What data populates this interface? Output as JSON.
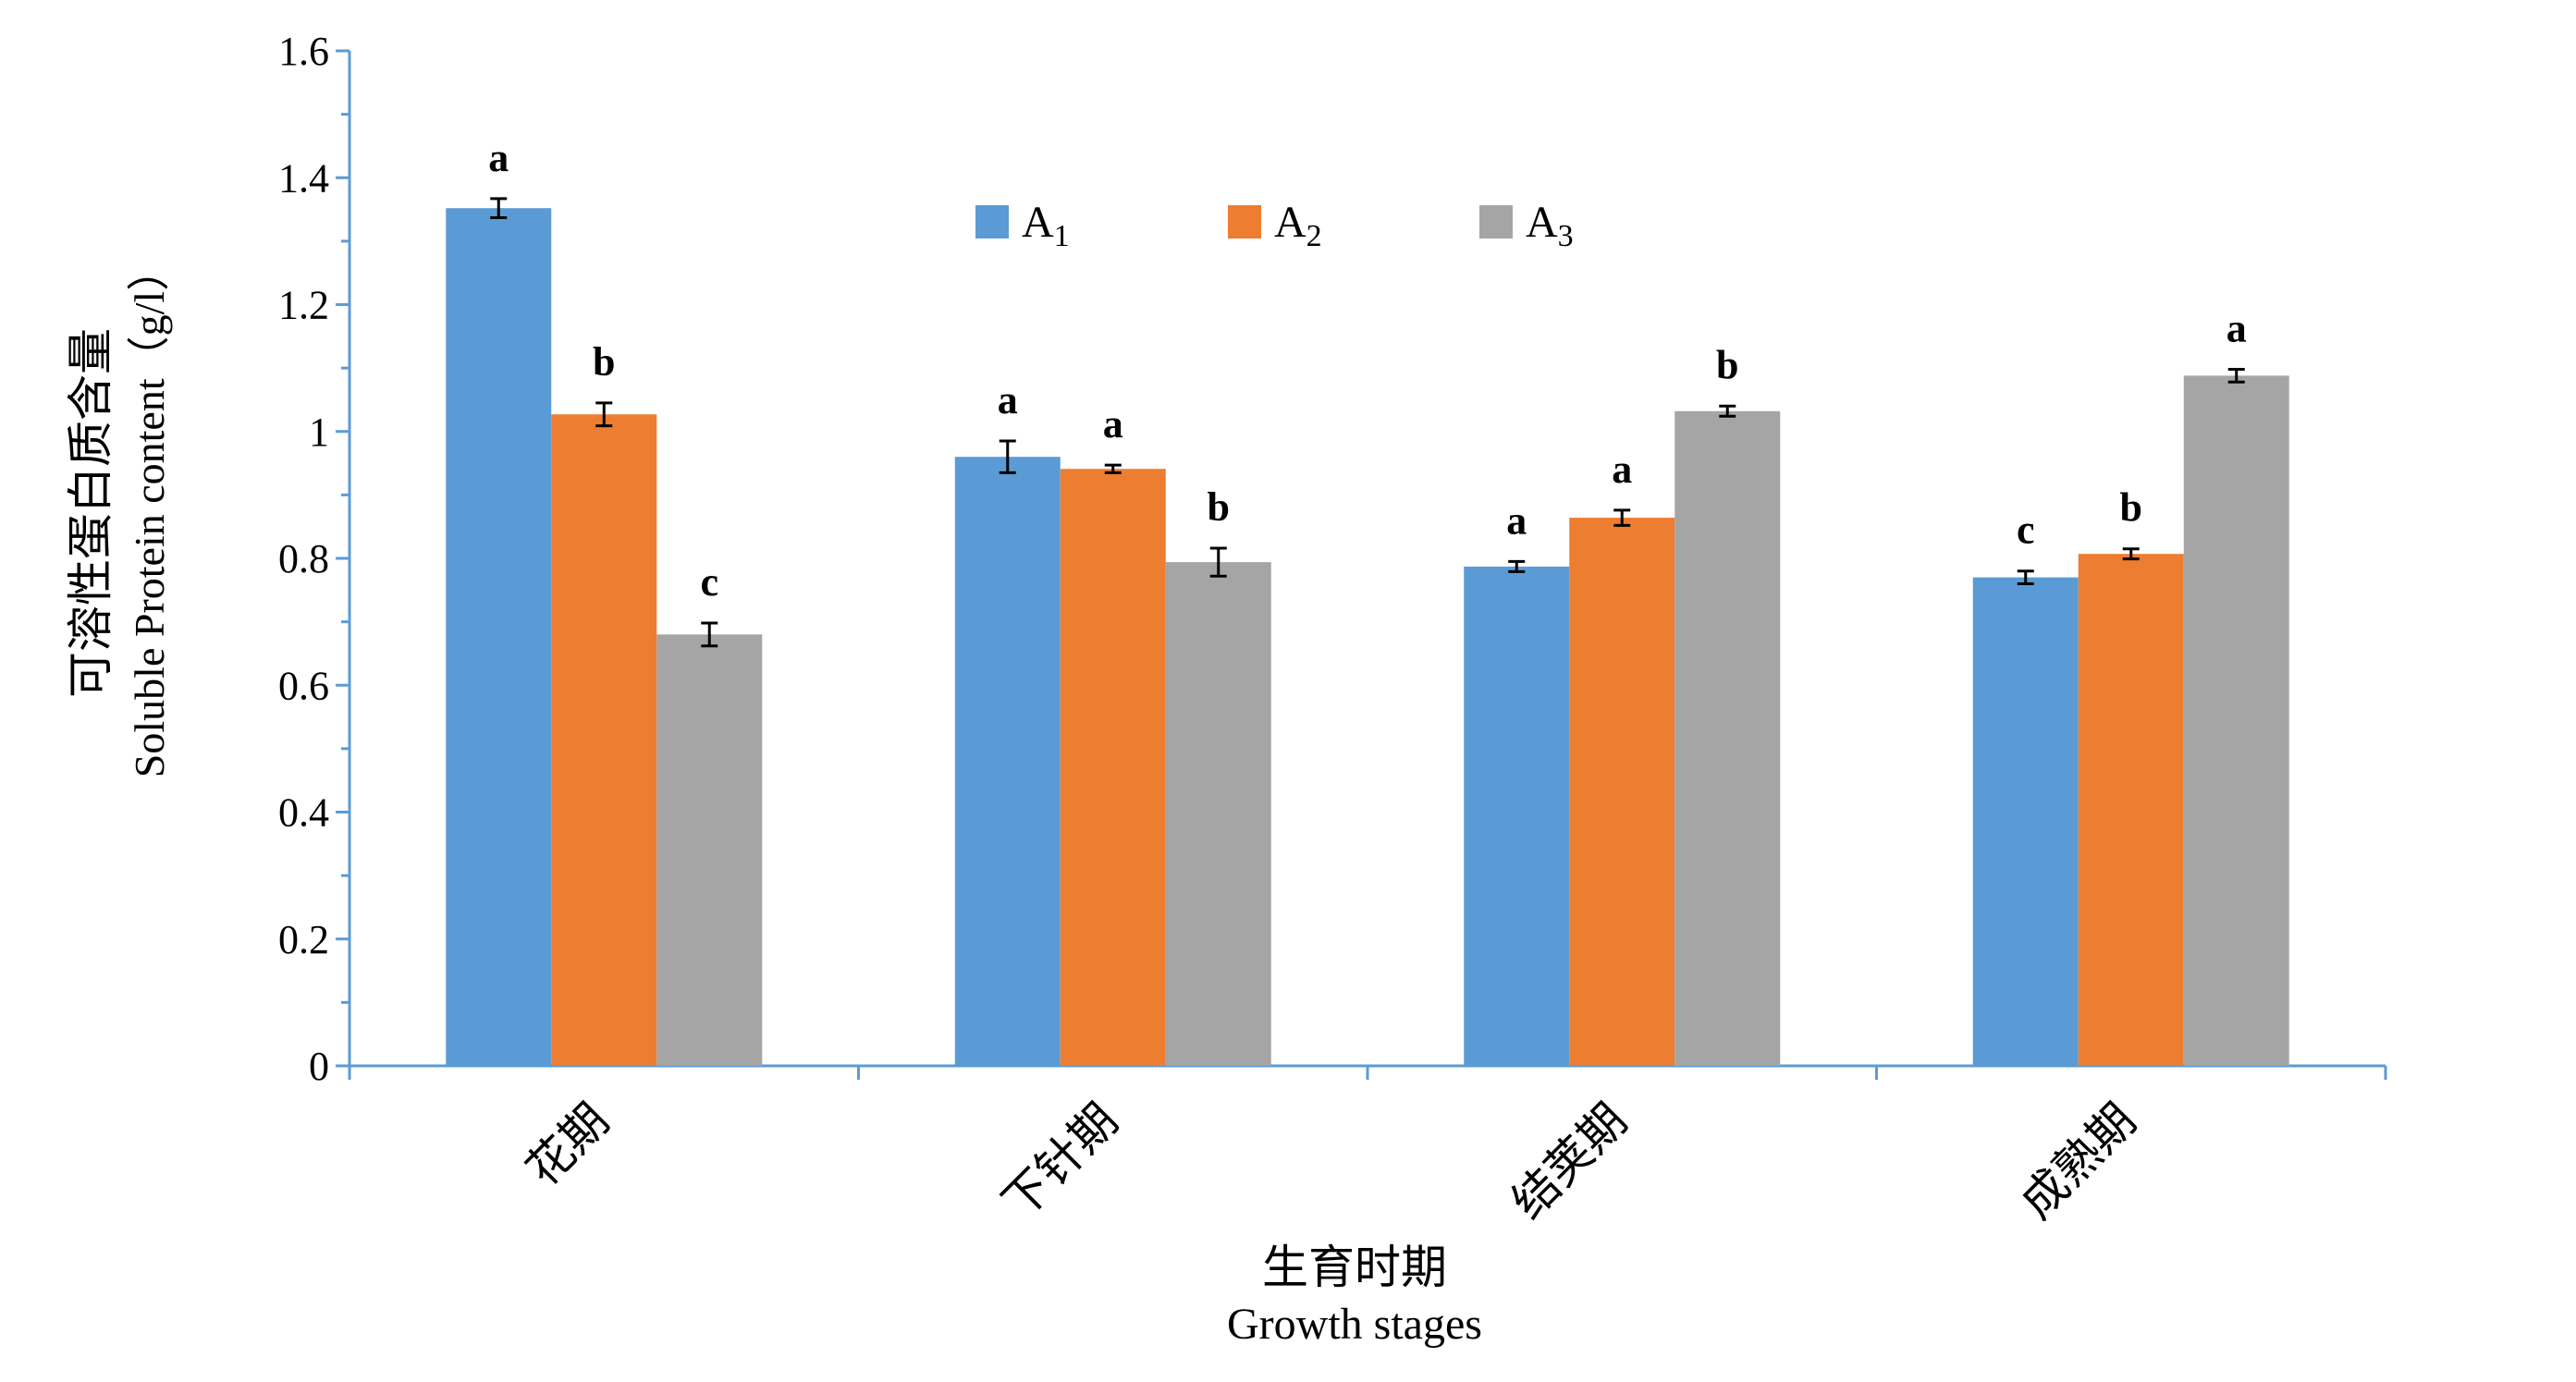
{
  "chart_data": {
    "type": "bar",
    "ylabel_cn": "可溶性蛋白质含量",
    "ylabel_en": "Soluble Protein content（g/l）",
    "xlabel_cn": "生育时期",
    "xlabel_en": "Growth stages",
    "categories": [
      "花期",
      "下针期",
      "结荚期",
      "成熟期"
    ],
    "ylim": [
      0,
      1.6
    ],
    "yticks": [
      0,
      0.2,
      0.4,
      0.6,
      0.8,
      1,
      1.2,
      1.4,
      1.6
    ],
    "ytick_labels": [
      "0",
      "0.2",
      "0.4",
      "0.6",
      "0.8",
      "1",
      "1.2",
      "1.4",
      "1.6"
    ],
    "grid": false,
    "legend_position": "top-center",
    "series": [
      {
        "name": "A",
        "subscript": "1",
        "color": "#5B9BD5",
        "values": [
          1.352,
          0.96,
          0.787,
          0.77
        ],
        "errors": [
          0.015,
          0.025,
          0.008,
          0.01
        ],
        "letters": [
          "a",
          "a",
          "a",
          "c"
        ]
      },
      {
        "name": "A",
        "subscript": "2",
        "color": "#ED7D31",
        "values": [
          1.027,
          0.941,
          0.864,
          0.807
        ],
        "errors": [
          0.018,
          0.006,
          0.012,
          0.008
        ],
        "letters": [
          "b",
          "a",
          "a",
          "b"
        ]
      },
      {
        "name": "A",
        "subscript": "3",
        "color": "#A5A5A5",
        "values": [
          0.68,
          0.794,
          1.032,
          1.088
        ],
        "errors": [
          0.018,
          0.022,
          0.008,
          0.01
        ],
        "letters": [
          "c",
          "b",
          "b",
          "a"
        ]
      }
    ]
  }
}
